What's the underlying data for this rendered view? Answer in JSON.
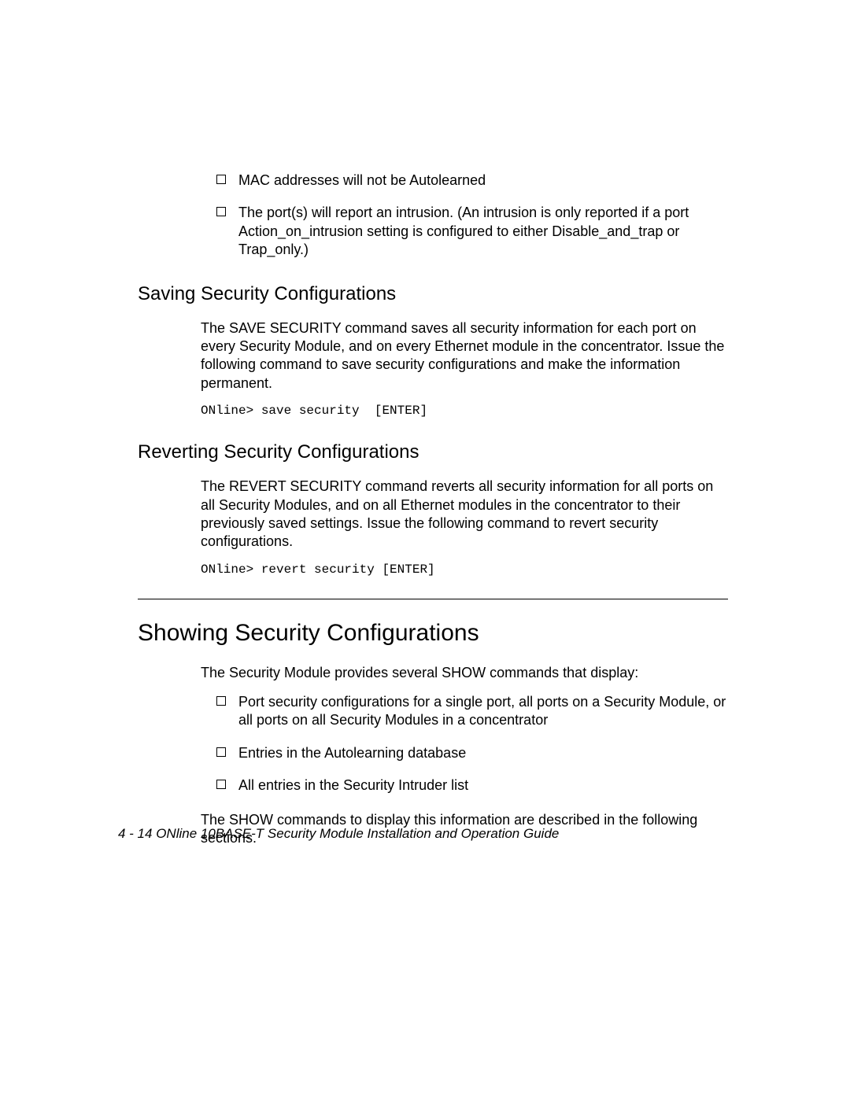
{
  "bullets_top": [
    "MAC addresses will not be Autolearned",
    "The port(s) will report an intrusion. (An intrusion is only reported if a port Action_on_intrusion setting is configured to either Disable_and_trap or Trap_only.)"
  ],
  "section_saving": {
    "heading": "Saving Security Configurations",
    "para": "The SAVE SECURITY command saves all security information for each port on every Security Module, and on every Ethernet module in the concentrator. Issue the following command to save security configurations and make the information permanent.",
    "code": "ONline> save security  [ENTER]"
  },
  "section_reverting": {
    "heading": "Reverting Security Configurations",
    "para": "The REVERT SECURITY command reverts all security information for all ports on all Security Modules, and on all Ethernet modules in the concentrator to their previously saved settings. Issue the following command to revert security configurations.",
    "code": "ONline> revert security [ENTER]"
  },
  "section_showing": {
    "heading": "Showing Security Configurations",
    "intro": "The Security Module provides several SHOW commands that display:",
    "bullets": [
      "Port security configurations for a single port, all ports on a Security Module, or all ports on all Security Modules in a concentrator",
      "Entries in the Autolearning database",
      "All entries in the Security Intruder list"
    ],
    "outro": "The SHOW commands to display this information are described in the following sections."
  },
  "footer": "4 - 14  ONline 10BASE-T Security Module Installation and Operation Guide"
}
